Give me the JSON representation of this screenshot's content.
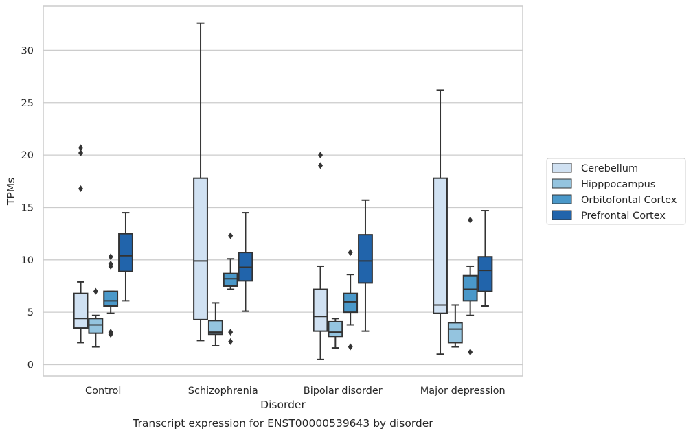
{
  "chart_data": {
    "type": "box",
    "title": "",
    "caption": "Transcript expression for ENST00000539643 by disorder",
    "xlabel": "Disorder",
    "ylabel": "TPMs",
    "ylim": [
      -1,
      34
    ],
    "yticks": [
      0,
      5,
      10,
      15,
      20,
      25,
      30
    ],
    "grid": "horizontal",
    "legend_position": "right",
    "categories": [
      "Control",
      "Schizophrenia",
      "Bipolar disorder",
      "Major depression"
    ],
    "series": [
      {
        "name": "Cerebellum",
        "color": "#d0e1f2",
        "boxes": [
          {
            "whislo": 2.1,
            "q1": 3.5,
            "med": 4.4,
            "q3": 6.8,
            "whishi": 7.9,
            "fliers": [
              16.8,
              20.2,
              20.7
            ]
          },
          {
            "whislo": 2.3,
            "q1": 4.3,
            "med": 9.9,
            "q3": 17.8,
            "whishi": 32.6,
            "fliers": []
          },
          {
            "whislo": 0.5,
            "q1": 3.2,
            "med": 4.6,
            "q3": 7.2,
            "whishi": 9.4,
            "fliers": [
              19.0,
              20.0
            ]
          },
          {
            "whislo": 1.0,
            "q1": 4.9,
            "med": 5.7,
            "q3": 17.8,
            "whishi": 26.2,
            "fliers": []
          }
        ]
      },
      {
        "name": "Hipppocampus",
        "color": "#94c4df",
        "boxes": [
          {
            "whislo": 1.7,
            "q1": 3.0,
            "med": 3.8,
            "q3": 4.4,
            "whishi": 4.7,
            "fliers": [
              7.0
            ]
          },
          {
            "whislo": 1.8,
            "q1": 2.9,
            "med": 3.1,
            "q3": 4.2,
            "whishi": 5.9,
            "fliers": []
          },
          {
            "whislo": 1.6,
            "q1": 2.7,
            "med": 3.1,
            "q3": 4.1,
            "whishi": 4.4,
            "fliers": []
          },
          {
            "whislo": 1.7,
            "q1": 2.1,
            "med": 3.4,
            "q3": 4.0,
            "whishi": 5.7,
            "fliers": []
          }
        ]
      },
      {
        "name": "Orbitofontal Cortex",
        "color": "#4a98c9",
        "boxes": [
          {
            "whislo": 4.9,
            "q1": 5.6,
            "med": 6.1,
            "q3": 7.0,
            "whishi": 7.0,
            "fliers": [
              2.9,
              3.1,
              9.4,
              9.6,
              10.3
            ]
          },
          {
            "whislo": 7.2,
            "q1": 7.5,
            "med": 8.2,
            "q3": 8.7,
            "whishi": 10.1,
            "fliers": [
              2.2,
              3.1,
              12.3
            ]
          },
          {
            "whislo": 3.8,
            "q1": 5.0,
            "med": 6.0,
            "q3": 6.8,
            "whishi": 8.6,
            "fliers": [
              1.7,
              10.7
            ]
          },
          {
            "whislo": 4.7,
            "q1": 6.1,
            "med": 7.2,
            "q3": 8.5,
            "whishi": 9.4,
            "fliers": [
              1.2,
              13.8
            ]
          }
        ]
      },
      {
        "name": "Prefrontal Cortex",
        "color": "#2164ab",
        "boxes": [
          {
            "whislo": 6.1,
            "q1": 8.9,
            "med": 10.4,
            "q3": 12.5,
            "whishi": 14.5,
            "fliers": []
          },
          {
            "whislo": 5.1,
            "q1": 8.0,
            "med": 9.3,
            "q3": 10.7,
            "whishi": 14.5,
            "fliers": []
          },
          {
            "whislo": 3.2,
            "q1": 7.8,
            "med": 9.9,
            "q3": 12.4,
            "whishi": 15.7,
            "fliers": []
          },
          {
            "whislo": 5.6,
            "q1": 7.0,
            "med": 9.0,
            "q3": 10.3,
            "whishi": 14.7,
            "fliers": []
          }
        ]
      }
    ]
  }
}
